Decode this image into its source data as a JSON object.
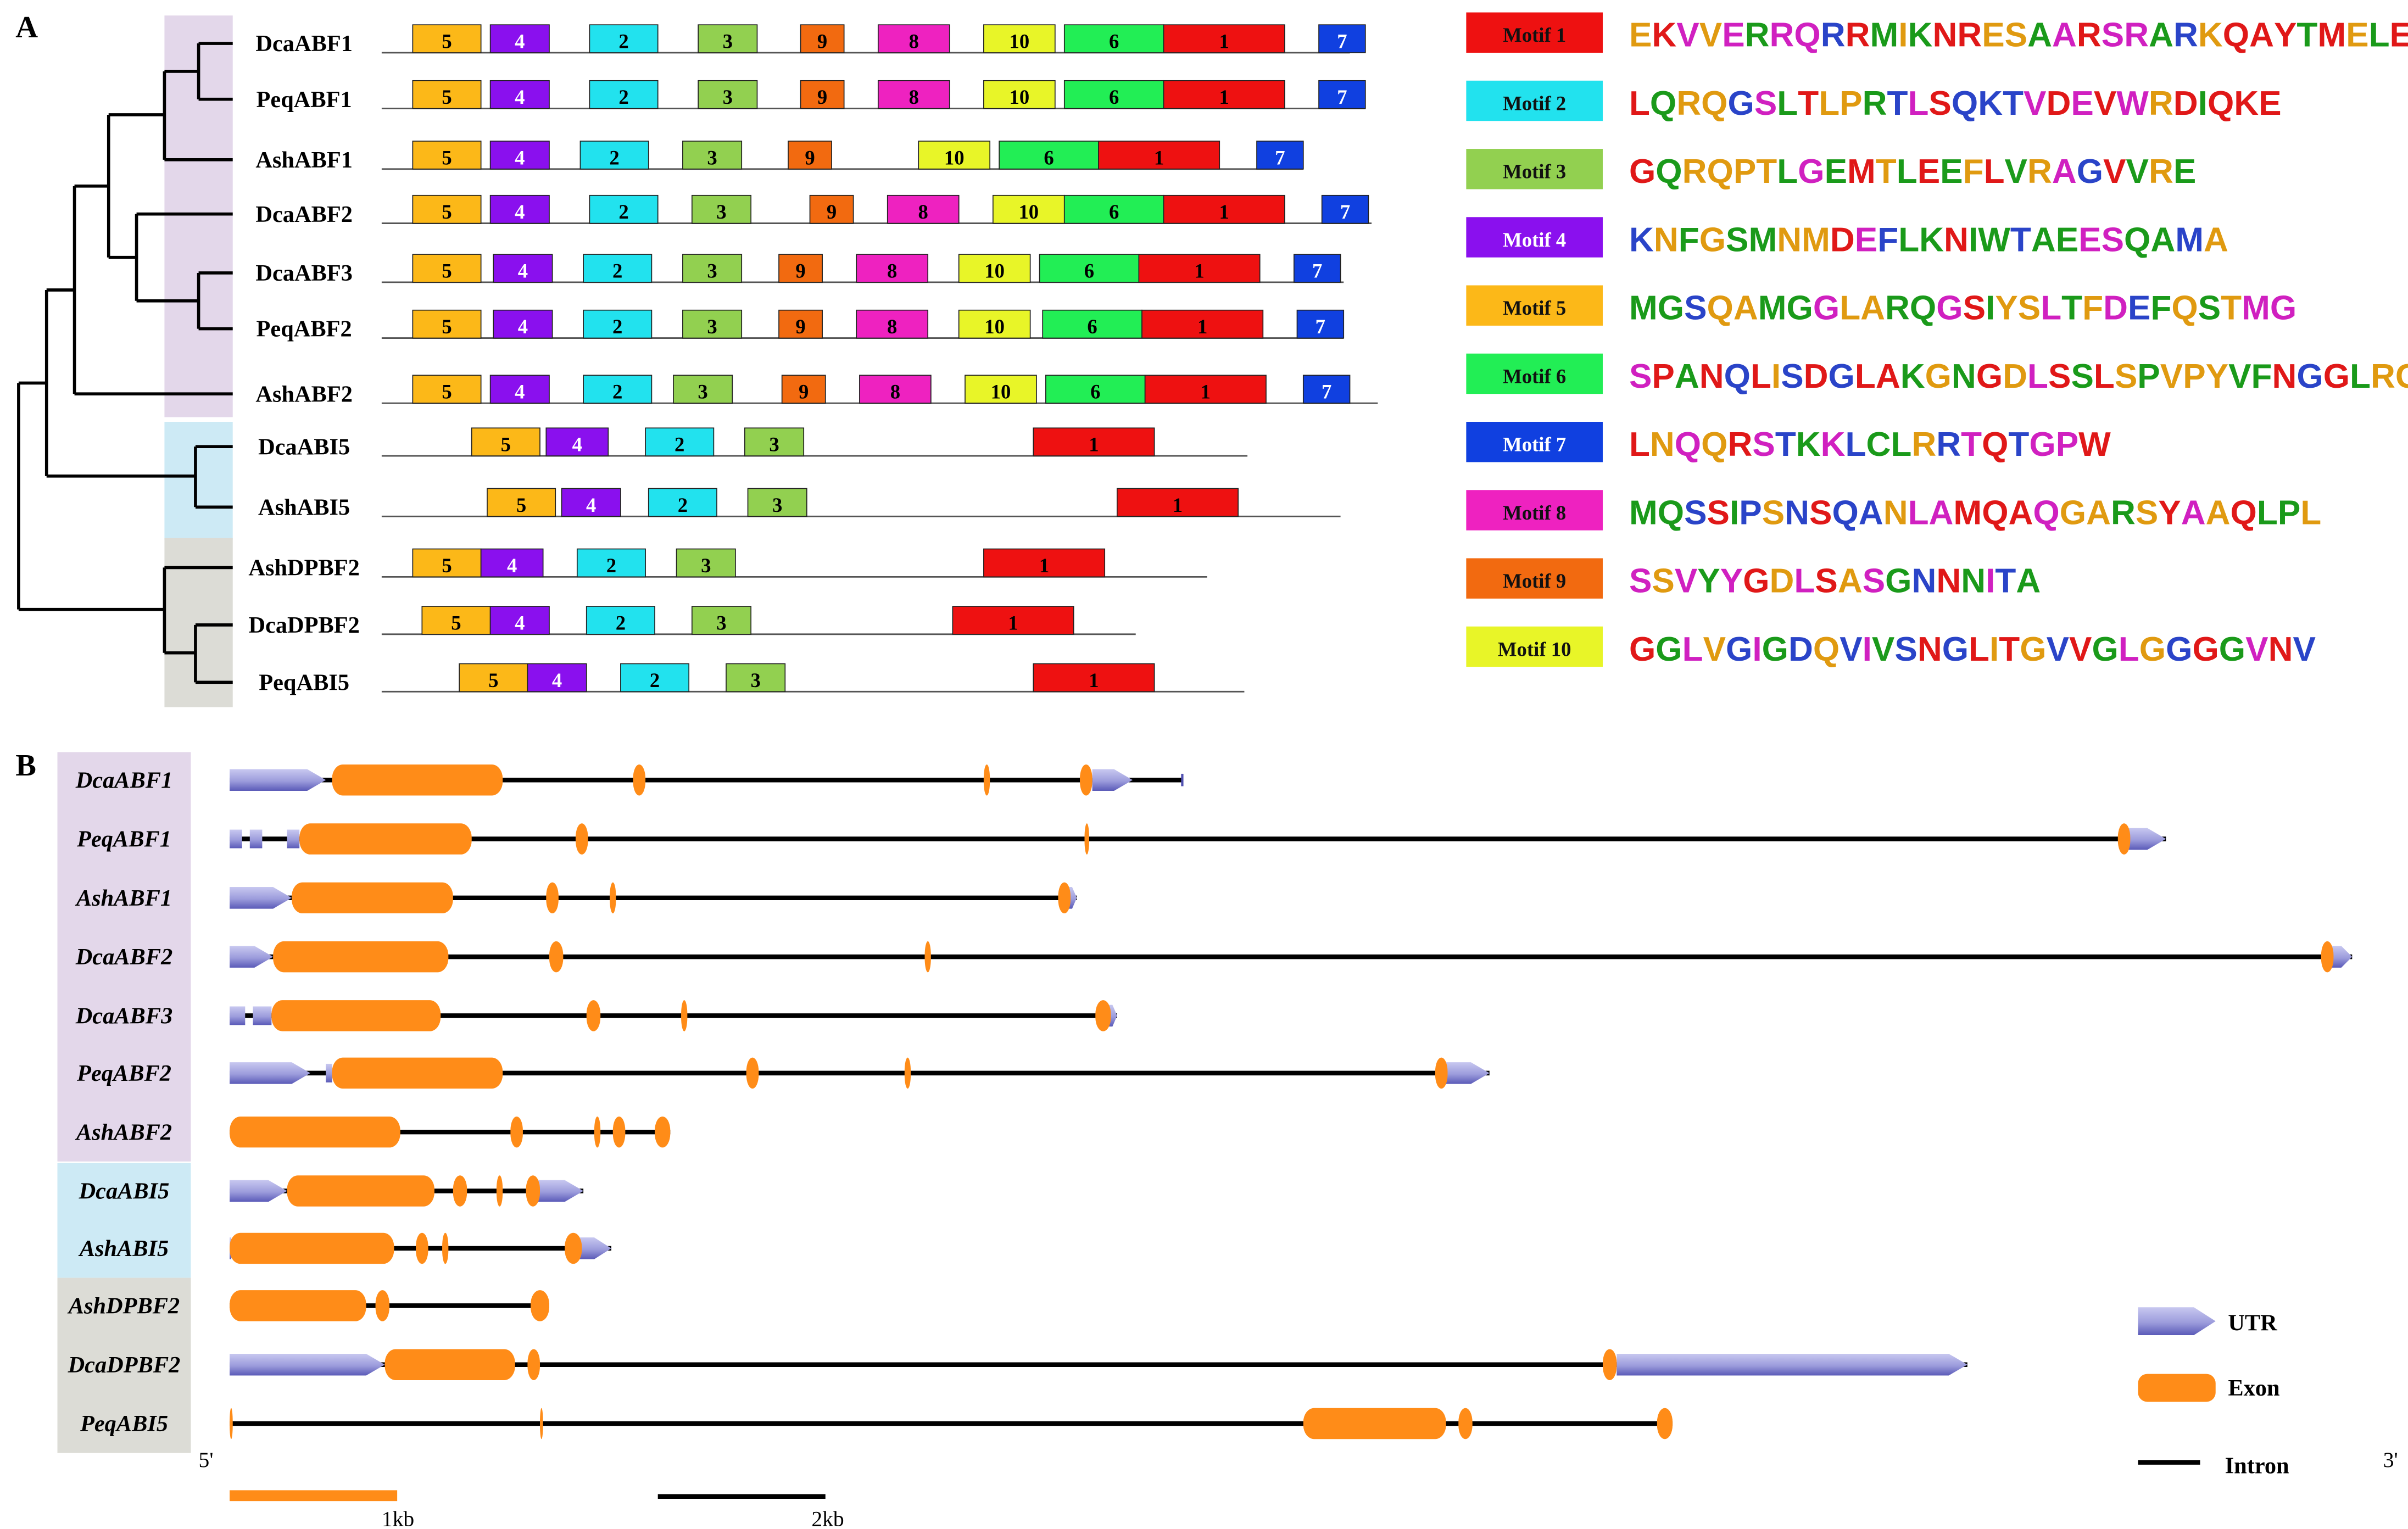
{
  "panel_a": {
    "label": "A",
    "genes": [
      {
        "name": "DcaABF1",
        "line_end": 870,
        "motifs": [
          {
            "id": "5",
            "s": 266,
            "e": 310
          },
          {
            "id": "4",
            "s": 316,
            "e": 354
          },
          {
            "id": "2",
            "s": 380,
            "e": 424
          },
          {
            "id": "3",
            "s": 450,
            "e": 488
          },
          {
            "id": "9",
            "s": 516,
            "e": 544
          },
          {
            "id": "8",
            "s": 566,
            "e": 612
          },
          {
            "id": "10",
            "s": 634,
            "e": 680
          },
          {
            "id": "6",
            "s": 686,
            "e": 750
          },
          {
            "id": "1",
            "s": 750,
            "e": 828
          },
          {
            "id": "7",
            "s": 850,
            "e": 880
          }
        ]
      },
      {
        "name": "PeqABF1",
        "line_end": 880,
        "motifs": [
          {
            "id": "5",
            "s": 266,
            "e": 310
          },
          {
            "id": "4",
            "s": 316,
            "e": 354
          },
          {
            "id": "2",
            "s": 380,
            "e": 424
          },
          {
            "id": "3",
            "s": 450,
            "e": 488
          },
          {
            "id": "9",
            "s": 516,
            "e": 544
          },
          {
            "id": "8",
            "s": 566,
            "e": 612
          },
          {
            "id": "10",
            "s": 634,
            "e": 680
          },
          {
            "id": "6",
            "s": 686,
            "e": 750
          },
          {
            "id": "1",
            "s": 750,
            "e": 828
          },
          {
            "id": "7",
            "s": 850,
            "e": 880
          }
        ]
      },
      {
        "name": "AshABF1",
        "line_end": 840,
        "motifs": [
          {
            "id": "5",
            "s": 266,
            "e": 310
          },
          {
            "id": "4",
            "s": 316,
            "e": 354
          },
          {
            "id": "2",
            "s": 374,
            "e": 418
          },
          {
            "id": "3",
            "s": 440,
            "e": 478
          },
          {
            "id": "9",
            "s": 508,
            "e": 536
          },
          {
            "id": "10",
            "s": 592,
            "e": 638
          },
          {
            "id": "6",
            "s": 644,
            "e": 708
          },
          {
            "id": "1",
            "s": 708,
            "e": 786
          },
          {
            "id": "7",
            "s": 810,
            "e": 840
          }
        ]
      },
      {
        "name": "DcaABF2",
        "line_end": 884,
        "motifs": [
          {
            "id": "5",
            "s": 266,
            "e": 310
          },
          {
            "id": "4",
            "s": 316,
            "e": 354
          },
          {
            "id": "2",
            "s": 380,
            "e": 424
          },
          {
            "id": "3",
            "s": 446,
            "e": 484
          },
          {
            "id": "9",
            "s": 522,
            "e": 550
          },
          {
            "id": "8",
            "s": 572,
            "e": 618
          },
          {
            "id": "10",
            "s": 640,
            "e": 686
          },
          {
            "id": "6",
            "s": 686,
            "e": 750
          },
          {
            "id": "1",
            "s": 750,
            "e": 828
          },
          {
            "id": "7",
            "s": 852,
            "e": 882
          }
        ]
      },
      {
        "name": "DcaABF3",
        "line_end": 866,
        "motifs": [
          {
            "id": "5",
            "s": 266,
            "e": 310
          },
          {
            "id": "4",
            "s": 318,
            "e": 356
          },
          {
            "id": "2",
            "s": 376,
            "e": 420
          },
          {
            "id": "3",
            "s": 440,
            "e": 478
          },
          {
            "id": "9",
            "s": 502,
            "e": 530
          },
          {
            "id": "8",
            "s": 552,
            "e": 598
          },
          {
            "id": "10",
            "s": 618,
            "e": 664
          },
          {
            "id": "6",
            "s": 670,
            "e": 734
          },
          {
            "id": "1",
            "s": 734,
            "e": 812
          },
          {
            "id": "7",
            "s": 834,
            "e": 864
          }
        ]
      },
      {
        "name": "PeqABF2",
        "line_end": 866,
        "motifs": [
          {
            "id": "5",
            "s": 266,
            "e": 310
          },
          {
            "id": "4",
            "s": 318,
            "e": 356
          },
          {
            "id": "2",
            "s": 376,
            "e": 420
          },
          {
            "id": "3",
            "s": 440,
            "e": 478
          },
          {
            "id": "9",
            "s": 502,
            "e": 530
          },
          {
            "id": "8",
            "s": 552,
            "e": 598
          },
          {
            "id": "10",
            "s": 618,
            "e": 664
          },
          {
            "id": "6",
            "s": 672,
            "e": 736
          },
          {
            "id": "1",
            "s": 736,
            "e": 814
          },
          {
            "id": "7",
            "s": 836,
            "e": 866
          }
        ]
      },
      {
        "name": "AshABF2",
        "line_end": 888,
        "motifs": [
          {
            "id": "5",
            "s": 266,
            "e": 310
          },
          {
            "id": "4",
            "s": 316,
            "e": 354
          },
          {
            "id": "2",
            "s": 376,
            "e": 420
          },
          {
            "id": "3",
            "s": 434,
            "e": 472
          },
          {
            "id": "9",
            "s": 504,
            "e": 532
          },
          {
            "id": "8",
            "s": 554,
            "e": 600
          },
          {
            "id": "10",
            "s": 622,
            "e": 668
          },
          {
            "id": "6",
            "s": 674,
            "e": 738
          },
          {
            "id": "1",
            "s": 738,
            "e": 816
          },
          {
            "id": "7",
            "s": 840,
            "e": 870
          }
        ]
      },
      {
        "name": "DcaABI5",
        "line_end": 804,
        "motifs": [
          {
            "id": "5",
            "s": 304,
            "e": 348
          },
          {
            "id": "4",
            "s": 352,
            "e": 392
          },
          {
            "id": "2",
            "s": 416,
            "e": 460
          },
          {
            "id": "3",
            "s": 480,
            "e": 518
          },
          {
            "id": "1",
            "s": 666,
            "e": 744
          }
        ]
      },
      {
        "name": "AshABI5",
        "line_end": 864,
        "motifs": [
          {
            "id": "5",
            "s": 314,
            "e": 358
          },
          {
            "id": "4",
            "s": 362,
            "e": 400
          },
          {
            "id": "2",
            "s": 418,
            "e": 462
          },
          {
            "id": "3",
            "s": 482,
            "e": 520
          },
          {
            "id": "1",
            "s": 720,
            "e": 798
          }
        ]
      },
      {
        "name": "AshDPBF2",
        "line_end": 778,
        "motifs": [
          {
            "id": "5",
            "s": 266,
            "e": 310
          },
          {
            "id": "4",
            "s": 310,
            "e": 350
          },
          {
            "id": "2",
            "s": 372,
            "e": 416
          },
          {
            "id": "3",
            "s": 436,
            "e": 474
          },
          {
            "id": "1",
            "s": 634,
            "e": 712
          }
        ]
      },
      {
        "name": "DcaDPBF2",
        "line_end": 732,
        "motifs": [
          {
            "id": "5",
            "s": 272,
            "e": 316
          },
          {
            "id": "4",
            "s": 316,
            "e": 354
          },
          {
            "id": "2",
            "s": 378,
            "e": 422
          },
          {
            "id": "3",
            "s": 446,
            "e": 484
          },
          {
            "id": "1",
            "s": 614,
            "e": 692
          }
        ]
      },
      {
        "name": "PeqABI5",
        "line_end": 802,
        "motifs": [
          {
            "id": "5",
            "s": 296,
            "e": 340
          },
          {
            "id": "4",
            "s": 340,
            "e": 378
          },
          {
            "id": "2",
            "s": 400,
            "e": 444
          },
          {
            "id": "3",
            "s": 468,
            "e": 506
          },
          {
            "id": "1",
            "s": 666,
            "e": 744
          }
        ]
      }
    ],
    "clade_colors": [
      "#e3d7ea",
      "#cdeaf5",
      "#dcdcd6"
    ],
    "motif_colors": {
      "1": "#ee1111",
      "2": "#22e2ee",
      "3": "#92d050",
      "4": "#8a10ee",
      "5": "#fcb818",
      "6": "#22ee55",
      "7": "#1040e0",
      "8": "#ee22c0",
      "9": "#f26a10",
      "10": "#e8f528"
    },
    "legend": [
      {
        "id": "1",
        "label": "Motif 1",
        "seq": "EKVVERRQRRMIKNRESAARSRARKQAYTMELEAEVAKLKEQNQELQKKQ"
      },
      {
        "id": "2",
        "label": "Motif 2",
        "seq": "LQRQGSLTLPRTLSQKTVDEVWRDIQKE"
      },
      {
        "id": "3",
        "label": "Motif 3",
        "seq": "GQRQPTLGEMTLEEFLVRAGVVRE"
      },
      {
        "id": "4",
        "label": "Motif 4",
        "seq": "KNFGSMNMDEFLKNIWTAEESQAMA"
      },
      {
        "id": "5",
        "label": "Motif 5",
        "seq": "MGSQAMGGLARQGSIYSLTFDEFQSTMG"
      },
      {
        "id": "6",
        "label": "Motif 6",
        "seq": "SPANQLISDGLAKGNGDLSSLSPVPYVFNGGLRGRKSSGAV"
      },
      {
        "id": "7",
        "label": "Motif 7",
        "seq": "LNQQRSTKKLCLRRTQTGPW"
      },
      {
        "id": "8",
        "label": "Motif 8",
        "seq": "MQSSIPSNSQANLAMQAQGARSYAAQLPL"
      },
      {
        "id": "9",
        "label": "Motif 9",
        "seq": "SSVYYGDLSASGNNNITA"
      },
      {
        "id": "10",
        "label": "Motif 10",
        "seq": "GGLVGIGDQVIVSNGLITGVVGLGGGGVNV"
      }
    ]
  },
  "panel_b": {
    "label": "B",
    "genes": [
      {
        "name": "DcaABF1",
        "clade": 0,
        "end": 762,
        "tick": true,
        "utr": [
          [
            148,
            210,
            "a"
          ],
          [
            704,
            730,
            "a"
          ]
        ],
        "exons": [
          [
            214,
            324
          ],
          [
            408,
            416
          ],
          [
            634,
            638
          ],
          [
            696,
            704
          ]
        ]
      },
      {
        "name": "PeqABF1",
        "clade": 0,
        "end": 1396,
        "utr": [
          [
            148,
            156,
            "b"
          ],
          [
            161,
            169,
            "b"
          ],
          [
            185,
            193,
            "b"
          ],
          [
            1370,
            1396,
            "a"
          ]
        ],
        "exons": [
          [
            193,
            304
          ],
          [
            371,
            379
          ],
          [
            699,
            702
          ],
          [
            1365,
            1373
          ]
        ]
      },
      {
        "name": "AshABF1",
        "clade": 0,
        "end": 694,
        "utr": [
          [
            148,
            188,
            "a"
          ],
          [
            688,
            694,
            "a"
          ]
        ],
        "exons": [
          [
            188,
            292
          ],
          [
            352,
            360
          ],
          [
            393,
            397
          ],
          [
            682,
            690
          ]
        ]
      },
      {
        "name": "DcaABF2",
        "clade": 0,
        "end": 1516,
        "utr": [
          [
            148,
            176,
            "a"
          ],
          [
            1502,
            1516,
            "a"
          ]
        ],
        "exons": [
          [
            176,
            289
          ],
          [
            354,
            363
          ],
          [
            596,
            600
          ],
          [
            1496,
            1504
          ]
        ]
      },
      {
        "name": "DcaABF3",
        "clade": 0,
        "end": 720,
        "utr": [
          [
            148,
            158,
            "b"
          ],
          [
            163,
            175,
            "b"
          ],
          [
            714,
            720,
            "a"
          ]
        ],
        "exons": [
          [
            175,
            284
          ],
          [
            378,
            387
          ],
          [
            439,
            443
          ],
          [
            706,
            716
          ]
        ]
      },
      {
        "name": "PeqABF2",
        "clade": 0,
        "end": 960,
        "utr": [
          [
            148,
            200,
            "a"
          ],
          [
            210,
            214,
            "b"
          ],
          [
            932,
            960,
            "a"
          ]
        ],
        "exons": [
          [
            214,
            324
          ],
          [
            481,
            489
          ],
          [
            583,
            587
          ],
          [
            925,
            933
          ]
        ]
      },
      {
        "name": "AshABF2",
        "clade": 0,
        "end": 432,
        "utr": [],
        "exons": [
          [
            148,
            258
          ],
          [
            329,
            337
          ],
          [
            383,
            387
          ],
          [
            395,
            403
          ],
          [
            422,
            432
          ]
        ]
      },
      {
        "name": "DcaABI5",
        "clade": 1,
        "end": 376,
        "utr": [
          [
            148,
            185,
            "a"
          ],
          [
            346,
            376,
            "a"
          ]
        ],
        "exons": [
          [
            185,
            280
          ],
          [
            292,
            301
          ],
          [
            320,
            324
          ],
          [
            339,
            348
          ]
        ]
      },
      {
        "name": "AshABI5",
        "clade": 1,
        "end": 394,
        "utr": [
          [
            148,
            150,
            "a"
          ],
          [
            372,
            394,
            "a"
          ]
        ],
        "exons": [
          [
            148,
            254
          ],
          [
            268,
            276
          ],
          [
            285,
            289
          ],
          [
            364,
            375
          ]
        ]
      },
      {
        "name": "AshDPBF2",
        "clade": 2,
        "end": 354,
        "utr": [],
        "exons": [
          [
            148,
            236
          ],
          [
            242,
            251
          ],
          [
            342,
            354
          ]
        ]
      },
      {
        "name": "DcaDPBF2",
        "clade": 2,
        "end": 1268,
        "utr": [
          [
            148,
            248,
            "a"
          ],
          [
            1042,
            1268,
            "a"
          ]
        ],
        "exons": [
          [
            248,
            332
          ],
          [
            340,
            348
          ],
          [
            1033,
            1042
          ]
        ]
      },
      {
        "name": "PeqABI5",
        "clade": 2,
        "end": 1078,
        "utr": [],
        "exons": [
          [
            148,
            150
          ],
          [
            348,
            350
          ],
          [
            840,
            932
          ],
          [
            940,
            949
          ],
          [
            1068,
            1078
          ]
        ]
      }
    ],
    "clade_colors": [
      "#e3d7ea",
      "#cdeaf5",
      "#dcdcd6"
    ],
    "utr_color": "#9c9cdc",
    "utr_dark": "#5050b0",
    "exon_color": "#ff8c18",
    "five_prime": "5'",
    "three_prime": "3'",
    "legend": {
      "utr": "UTR",
      "exon": "Exon",
      "intron": "Intron"
    },
    "scale": {
      "label1": "1kb",
      "label2": "2kb"
    }
  }
}
